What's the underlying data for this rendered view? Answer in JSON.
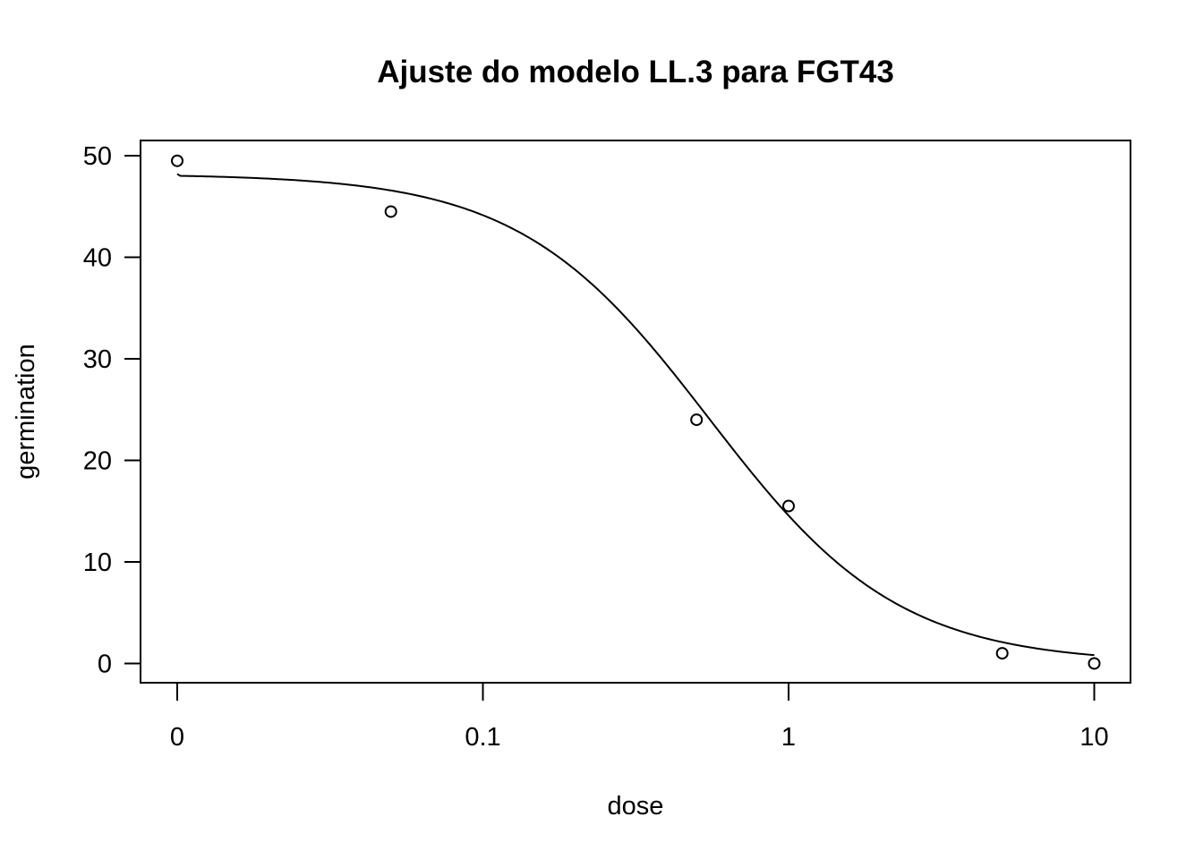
{
  "chart_data": {
    "type": "scatter",
    "title": "Ajuste do modelo LL.3 para FGT43",
    "xlabel": "dose",
    "ylabel": "germination",
    "x_scale": "log",
    "x_ticks": [
      {
        "value": 0,
        "label": "0"
      },
      {
        "value": 0.1,
        "label": "0.1"
      },
      {
        "value": 1,
        "label": "1"
      },
      {
        "value": 10,
        "label": "10"
      }
    ],
    "y_ticks": [
      {
        "value": 0,
        "label": "0"
      },
      {
        "value": 10,
        "label": "10"
      },
      {
        "value": 20,
        "label": "20"
      },
      {
        "value": 30,
        "label": "30"
      },
      {
        "value": 40,
        "label": "40"
      },
      {
        "value": 50,
        "label": "50"
      }
    ],
    "ylim": [
      -1.9,
      51.5
    ],
    "points": [
      {
        "x": 0,
        "y": 49.5
      },
      {
        "x": 0.05,
        "y": 44.5
      },
      {
        "x": 0.5,
        "y": 24
      },
      {
        "x": 1,
        "y": 15.5
      },
      {
        "x": 5,
        "y": 1
      },
      {
        "x": 10,
        "y": 0
      }
    ],
    "fitted_curve": {
      "model": "LL.3",
      "b": 1.4,
      "d": 48.2,
      "e": 0.55
    },
    "grid": false,
    "legend": "none",
    "colors": {
      "points": "#000000",
      "curve": "#000000",
      "box": "#000000",
      "background": "#ffffff"
    }
  }
}
